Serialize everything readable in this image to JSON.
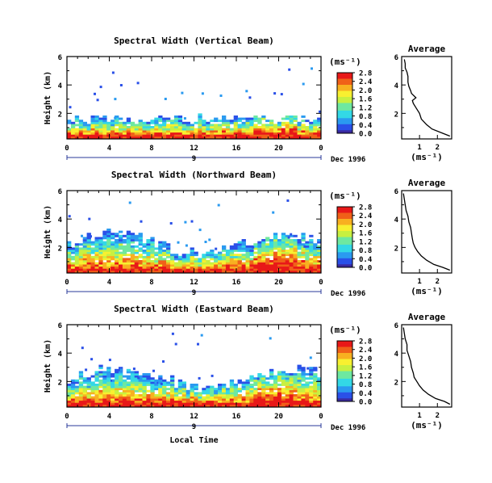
{
  "chart_data": [
    {
      "type": "heatmap",
      "title": "Spectral Width (Vertical Beam)",
      "ylabel": "Height (km)",
      "xlabel": "",
      "x_ticks": [
        "0",
        "4",
        "8",
        "12",
        "16",
        "20",
        "0"
      ],
      "y_ticks": [
        "2",
        "4",
        "6"
      ],
      "xlim": [
        0,
        24
      ],
      "ylim": [
        0.2,
        6.0
      ],
      "day_label": "9",
      "date_label": "Dec 1996",
      "colorbar": {
        "unit": "(ms⁻¹)",
        "ticks": [
          "0.0",
          "0.4",
          "0.8",
          "1.2",
          "1.6",
          "2.0",
          "2.4",
          "2.8"
        ],
        "range": [
          0.0,
          2.8
        ]
      },
      "average_profile": {
        "title": "Average",
        "xlabel": "(ms⁻¹)",
        "x_ticks": [
          "1",
          "2"
        ],
        "y_ticks": [
          "2",
          "4",
          "6"
        ],
        "xlim": [
          0,
          2.8
        ],
        "ylim": [
          0.2,
          6.0
        ],
        "width": [
          0.15,
          0.2,
          0.2,
          0.3,
          0.35,
          0.35,
          0.4,
          0.5,
          0.55,
          0.8,
          0.6,
          0.65,
          0.8,
          1.0,
          1.1,
          1.4,
          1.7,
          2.3,
          2.7
        ],
        "height": [
          5.8,
          5.5,
          5.2,
          4.9,
          4.6,
          4.2,
          3.9,
          3.6,
          3.4,
          3.1,
          2.9,
          2.7,
          2.4,
          2.0,
          1.6,
          1.2,
          0.9,
          0.6,
          0.4
        ]
      }
    },
    {
      "type": "heatmap",
      "title": "Spectral Width (Northward Beam)",
      "ylabel": "Height (km)",
      "xlabel": "",
      "x_ticks": [
        "0",
        "4",
        "8",
        "12",
        "16",
        "20",
        "0"
      ],
      "y_ticks": [
        "2",
        "4",
        "6"
      ],
      "xlim": [
        0,
        24
      ],
      "ylim": [
        0.2,
        6.0
      ],
      "day_label": "9",
      "date_label": "Dec 1996",
      "colorbar": {
        "unit": "(ms⁻¹)",
        "ticks": [
          "0.0",
          "0.4",
          "0.8",
          "1.2",
          "1.6",
          "2.0",
          "2.4",
          "2.8"
        ],
        "range": [
          0.0,
          2.8
        ]
      },
      "average_profile": {
        "title": "Average",
        "xlabel": "(ms⁻¹)",
        "x_ticks": [
          "1",
          "2"
        ],
        "y_ticks": [
          "2",
          "4",
          "6"
        ],
        "xlim": [
          0,
          2.8
        ],
        "ylim": [
          0.2,
          6.0
        ],
        "width": [
          0.1,
          0.15,
          0.2,
          0.25,
          0.35,
          0.4,
          0.5,
          0.55,
          0.6,
          0.65,
          0.75,
          0.9,
          1.1,
          1.4,
          1.8,
          2.3,
          2.7
        ],
        "height": [
          5.8,
          5.4,
          5.0,
          4.6,
          4.2,
          3.8,
          3.4,
          3.0,
          2.6,
          2.3,
          2.0,
          1.7,
          1.4,
          1.1,
          0.8,
          0.6,
          0.4
        ]
      }
    },
    {
      "type": "heatmap",
      "title": "Spectral Width (Eastward Beam)",
      "ylabel": "Height (km)",
      "xlabel": "Local Time",
      "x_ticks": [
        "0",
        "4",
        "8",
        "12",
        "16",
        "20",
        "0"
      ],
      "y_ticks": [
        "2",
        "4",
        "6"
      ],
      "xlim": [
        0,
        24
      ],
      "ylim": [
        0.2,
        6.0
      ],
      "day_label": "9",
      "date_label": "Dec 1996",
      "colorbar": {
        "unit": "(ms⁻¹)",
        "ticks": [
          "0.0",
          "0.4",
          "0.8",
          "1.2",
          "1.6",
          "2.0",
          "2.4",
          "2.8"
        ],
        "range": [
          0.0,
          2.8
        ]
      },
      "average_profile": {
        "title": "Average",
        "xlabel": "(ms⁻¹)",
        "x_ticks": [
          "1",
          "2"
        ],
        "y_ticks": [
          "2",
          "4",
          "6"
        ],
        "xlim": [
          0,
          2.8
        ],
        "ylim": [
          0.2,
          6.0
        ],
        "width": [
          0.1,
          0.15,
          0.2,
          0.3,
          0.3,
          0.4,
          0.5,
          0.55,
          0.65,
          0.7,
          0.85,
          1.0,
          1.2,
          1.5,
          1.9,
          2.4,
          2.7
        ],
        "height": [
          5.8,
          5.4,
          5.0,
          4.6,
          4.2,
          3.8,
          3.4,
          3.0,
          2.6,
          2.3,
          2.0,
          1.7,
          1.4,
          1.1,
          0.8,
          0.6,
          0.4
        ]
      }
    }
  ]
}
